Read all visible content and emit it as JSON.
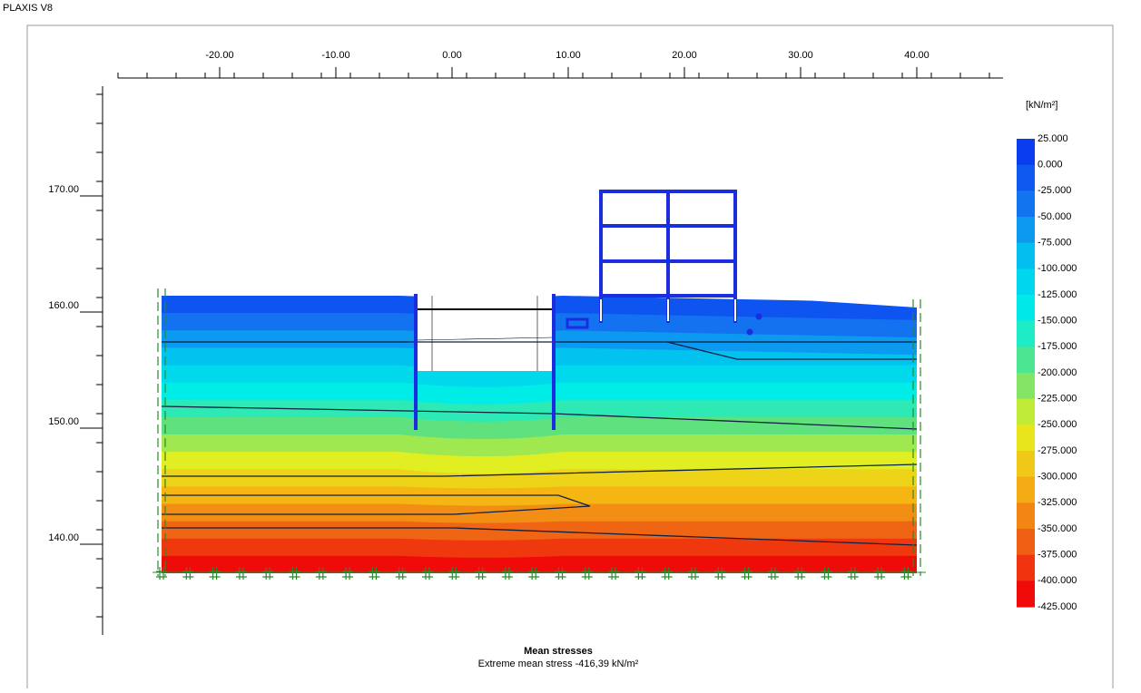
{
  "header": {
    "title": "PLAXIS V8"
  },
  "x_axis": {
    "ticks": [
      {
        "value": -20,
        "label": "-20.00"
      },
      {
        "value": -10,
        "label": "-10.00"
      },
      {
        "value": 0,
        "label": "0.00"
      },
      {
        "value": 10,
        "label": "10.00"
      },
      {
        "value": 20,
        "label": "20.00"
      },
      {
        "value": 30,
        "label": "30.00"
      },
      {
        "value": 40,
        "label": "40.00"
      }
    ]
  },
  "y_axis": {
    "ticks": [
      {
        "value": 170,
        "label": "170.00"
      },
      {
        "value": 160,
        "label": "160.00"
      },
      {
        "value": 150,
        "label": "150.00"
      },
      {
        "value": 140,
        "label": "140.00"
      }
    ]
  },
  "legend": {
    "unit": "[kN/m²]",
    "labels": [
      "25.000",
      "0.000",
      "-25.000",
      "-50.000",
      "-75.000",
      "-100.000",
      "-125.000",
      "-150.000",
      "-175.000",
      "-200.000",
      "-225.000",
      "-250.000",
      "-275.000",
      "-300.000",
      "-325.000",
      "-350.000",
      "-375.000",
      "-400.000",
      "-425.000"
    ]
  },
  "caption": {
    "title": "Mean stresses",
    "subtitle": "Extreme mean stress -416,39 kN/m²"
  }
}
